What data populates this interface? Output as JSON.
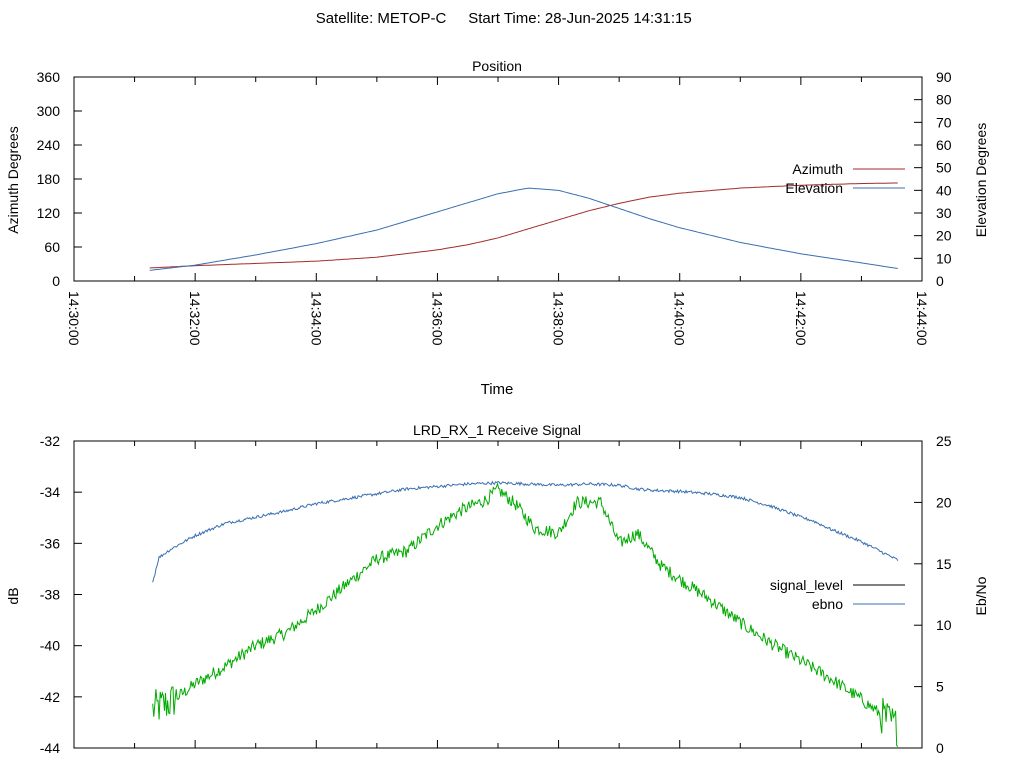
{
  "header": {
    "satellite_label": "Satellite: METOP-C",
    "start_time_label": "Start Time: 28-Jun-2025 14:31:15"
  },
  "colors": {
    "azimuth": "#a52a2a",
    "elevation": "#3a6fb0",
    "signal_level": "#00aa00",
    "ebno": "#3a6fb0",
    "signal_legend_sample": "#000000",
    "axis": "#000000"
  },
  "chart_data": [
    {
      "type": "line",
      "title": "Position",
      "xlabel": "Time",
      "ylabel": "Azimuth Degrees",
      "y2label": "Elevation Degrees",
      "x_range_minutes": [
        0,
        14
      ],
      "x_ticks": [
        "14:30:00",
        "14:32:00",
        "14:34:00",
        "14:36:00",
        "14:38:00",
        "14:40:00",
        "14:42:00",
        "14:44:00"
      ],
      "x_tick_minutes": [
        0,
        2,
        4,
        6,
        8,
        10,
        12,
        14
      ],
      "ylim": [
        0,
        360
      ],
      "y_ticks": [
        "0",
        "60",
        "120",
        "180",
        "240",
        "300",
        "360"
      ],
      "y2lim": [
        0,
        90
      ],
      "y2_ticks": [
        "0",
        "10",
        "20",
        "30",
        "40",
        "50",
        "60",
        "70",
        "80",
        "90"
      ],
      "legend_placement": "right",
      "series": [
        {
          "name": "Azimuth",
          "axis": "y",
          "x_minutes": [
            1.25,
            2,
            3,
            4,
            5,
            6,
            6.5,
            7,
            7.5,
            8,
            8.5,
            9,
            9.5,
            10,
            11,
            12,
            13,
            13.6
          ],
          "values": [
            23,
            27,
            31,
            35,
            42,
            55,
            64,
            76,
            92,
            108,
            124,
            137,
            148,
            155,
            164,
            169,
            172,
            173
          ]
        },
        {
          "name": "Elevation",
          "axis": "y2",
          "x_minutes": [
            1.25,
            2,
            3,
            4,
            5,
            6,
            6.5,
            7,
            7.5,
            8,
            8.5,
            9,
            9.5,
            10,
            11,
            12,
            13,
            13.6
          ],
          "values": [
            4.7,
            7,
            11.5,
            16.5,
            22.5,
            30.5,
            34.5,
            38.5,
            41,
            40,
            36.5,
            32,
            27.5,
            23.5,
            17,
            12,
            8,
            5.5
          ]
        }
      ]
    },
    {
      "type": "line",
      "title": "LRD_RX_1 Receive Signal",
      "ylabel": "dB",
      "y2label": "Eb/No",
      "x_range_minutes": [
        0,
        14
      ],
      "ylim": [
        -44,
        -32
      ],
      "y_ticks": [
        "-44",
        "-42",
        "-40",
        "-38",
        "-36",
        "-34",
        "-32"
      ],
      "y2lim": [
        0,
        25
      ],
      "y2_ticks": [
        "0",
        "5",
        "10",
        "15",
        "20",
        "25"
      ],
      "legend_placement": "right",
      "series": [
        {
          "name": "signal_level",
          "axis": "y",
          "x_minutes": [
            1.3,
            1.6,
            2,
            2.5,
            3,
            3.5,
            4,
            4.5,
            5,
            5.5,
            6,
            6.4,
            6.8,
            7,
            7.3,
            7.6,
            8,
            8.3,
            8.7,
            9,
            9.3,
            9.7,
            10,
            10.5,
            11,
            11.5,
            12,
            12.5,
            13,
            13.6
          ],
          "values": [
            -42.5,
            -42.2,
            -41.5,
            -40.8,
            -40,
            -39.5,
            -38.6,
            -37.6,
            -36.6,
            -36.3,
            -35.3,
            -34.7,
            -34.3,
            -33.9,
            -34.5,
            -35.4,
            -35.6,
            -34.4,
            -34.4,
            -36,
            -35.6,
            -36.9,
            -37.4,
            -38.2,
            -39.1,
            -39.9,
            -40.6,
            -41.3,
            -42.1,
            -43.2
          ]
        },
        {
          "name": "ebno",
          "axis": "y2",
          "x_minutes": [
            1.3,
            1.4,
            1.6,
            2,
            2.5,
            3,
            3.5,
            4,
            4.5,
            5,
            5.5,
            6,
            6.5,
            7,
            7.5,
            8,
            8.5,
            9,
            9.3,
            9.5,
            10,
            10.5,
            11,
            11.5,
            12,
            12.2,
            12.5,
            13,
            13.6
          ],
          "values": [
            13.5,
            15.5,
            16.2,
            17.3,
            18.3,
            18.8,
            19.3,
            19.9,
            20.3,
            20.7,
            21.1,
            21.3,
            21.5,
            21.6,
            21.5,
            21.4,
            21.5,
            21.4,
            21.1,
            21,
            20.9,
            20.7,
            20.4,
            19.7,
            18.8,
            18.5,
            17.8,
            16.8,
            15.3
          ]
        }
      ]
    }
  ]
}
